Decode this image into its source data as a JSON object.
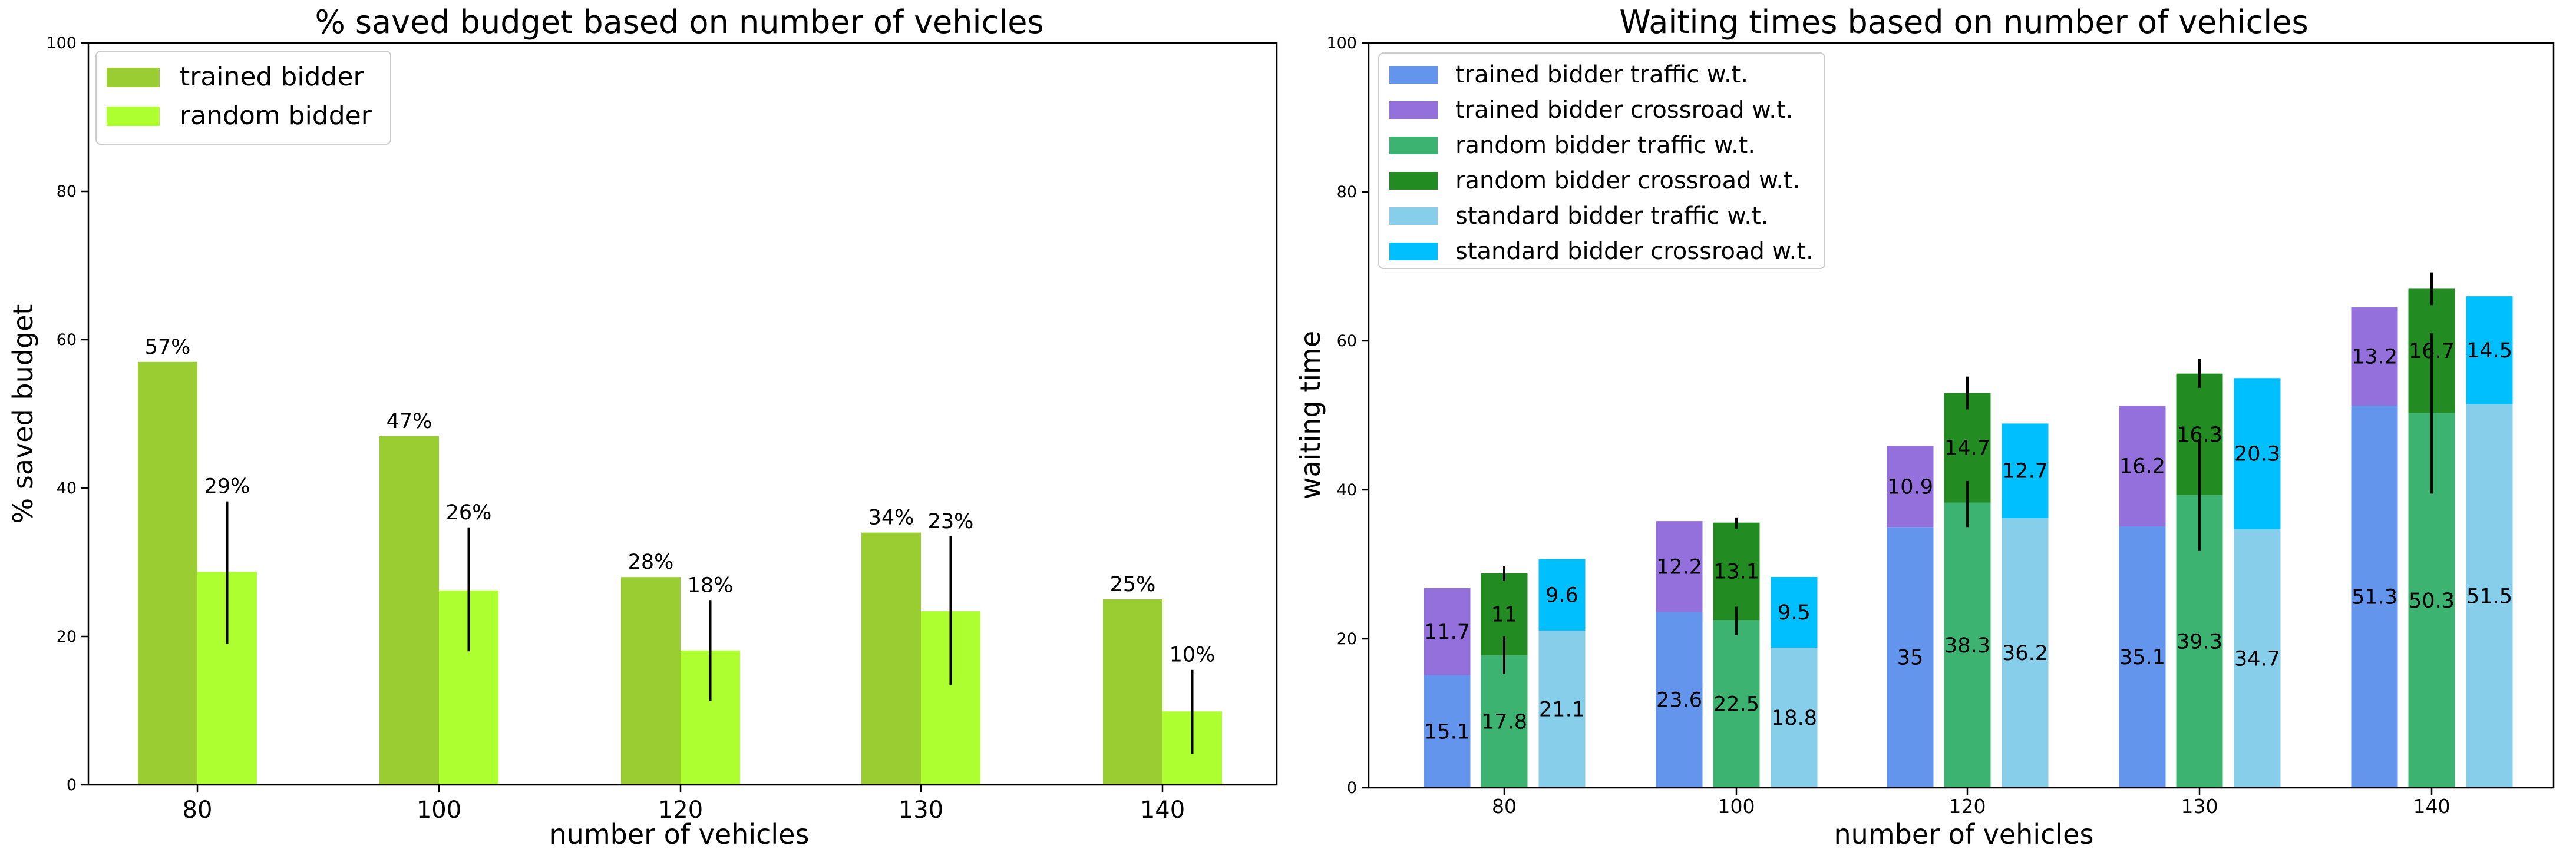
{
  "chart_data": [
    {
      "type": "bar",
      "title": "% saved budget based on number of vehicles",
      "xlabel": "number of vehicles",
      "ylabel": "% saved budget",
      "ylim": [
        0,
        100
      ],
      "yticks": [
        "0",
        "20",
        "40",
        "60",
        "80",
        "100"
      ],
      "categories": [
        "80",
        "100",
        "120",
        "130",
        "140"
      ],
      "legend_position": "top-left",
      "series": [
        {
          "name": "trained bidder",
          "color": "#9acd32",
          "values": [
            57,
            47,
            28,
            34,
            25
          ],
          "labels": [
            "57%",
            "47%",
            "28%",
            "34%",
            "25%"
          ]
        },
        {
          "name": "random bidder",
          "color": "#adff2f",
          "values": [
            28.7,
            26.2,
            18.1,
            23.4,
            9.9
          ],
          "labels": [
            "29%",
            "26%",
            "18%",
            "23%",
            "10%"
          ],
          "error_low": [
            19,
            18,
            11.3,
            13.5,
            4.2
          ],
          "error_high": [
            38.2,
            34.7,
            24.9,
            33.5,
            15.5
          ]
        }
      ]
    },
    {
      "type": "bar",
      "stacked": true,
      "title": "Waiting times based on number of vehicles",
      "xlabel": "number of vehicles",
      "ylabel": "waiting time",
      "ylim": [
        0,
        100
      ],
      "yticks": [
        "0",
        "20",
        "40",
        "60",
        "80",
        "100"
      ],
      "categories": [
        "80",
        "100",
        "120",
        "130",
        "140"
      ],
      "legend_position": "top-left",
      "groups": [
        {
          "name": "trained bidder",
          "traffic": {
            "name": "trained bidder traffic w.t.",
            "color": "#6495ed",
            "values": [
              15.1,
              23.6,
              35,
              35.1,
              51.3
            ],
            "labels": [
              "15.1",
              "23.6",
              "35",
              "35.1",
              "51.3"
            ]
          },
          "crossroad": {
            "name": "trained bidder crossroad w.t.",
            "color": "#9370db",
            "values": [
              11.7,
              12.2,
              10.9,
              16.2,
              13.2
            ],
            "labels": [
              "11.7",
              "12.2",
              "10.9",
              "16.2",
              "13.2"
            ]
          }
        },
        {
          "name": "random bidder",
          "traffic": {
            "name": "random bidder traffic w.t.",
            "color": "#3cb371",
            "values": [
              17.8,
              22.5,
              38.3,
              39.3,
              50.3
            ],
            "labels": [
              "17.8",
              "22.5",
              "38.3",
              "39.3",
              "50.3"
            ],
            "error_low": [
              15.3,
              20.5,
              35,
              31.8,
              39.5
            ],
            "error_high": [
              20.3,
              24.3,
              41.2,
              46.8,
              61
            ]
          },
          "crossroad": {
            "name": "random bidder crossroad w.t.",
            "color": "#228b22",
            "values": [
              11,
              13.1,
              14.7,
              16.3,
              16.7
            ],
            "labels": [
              "11",
              "13.1",
              "14.7",
              "16.3",
              "16.7"
            ],
            "error_low": [
              27.8,
              34.8,
              50.8,
              53.7,
              64.8
            ],
            "error_high": [
              29.8,
              36.3,
              55.2,
              57.6,
              69.2
            ]
          }
        },
        {
          "name": "standard bidder",
          "traffic": {
            "name": "standard bidder traffic w.t.",
            "color": "#87ceeb",
            "values": [
              21.1,
              18.8,
              36.2,
              34.7,
              51.5
            ],
            "labels": [
              "21.1",
              "18.8",
              "36.2",
              "34.7",
              "51.5"
            ]
          },
          "crossroad": {
            "name": "standard bidder crossroad w.t.",
            "color": "#00bfff",
            "values": [
              9.6,
              9.5,
              12.7,
              20.3,
              14.5
            ],
            "labels": [
              "9.6",
              "9.5",
              "12.7",
              "20.3",
              "14.5"
            ]
          }
        }
      ]
    }
  ]
}
